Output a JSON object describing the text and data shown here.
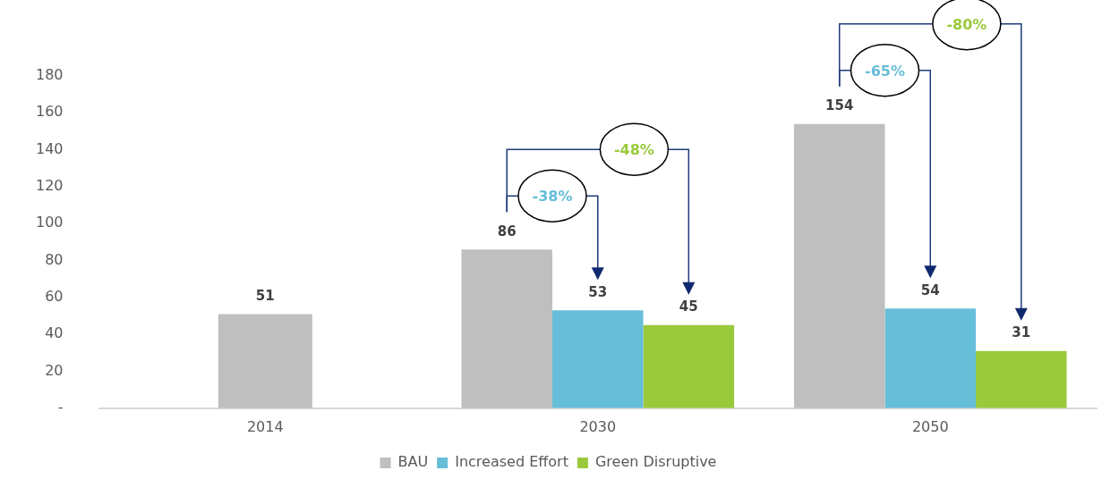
{
  "chart_data": {
    "type": "bar",
    "categories": [
      "2014",
      "2030",
      "2050"
    ],
    "series": [
      {
        "name": "BAU",
        "color": "#bfbfbf",
        "values": [
          51,
          86,
          154
        ]
      },
      {
        "name": "Increased Effort",
        "color": "#67bed9",
        "values": [
          null,
          53,
          54
        ]
      },
      {
        "name": "Green Disruptive",
        "color": "#9aca3c",
        "values": [
          null,
          45,
          31
        ]
      }
    ],
    "ylim": [
      0,
      180
    ],
    "yticks": [
      {
        "value": 0,
        "label": "-"
      },
      20,
      40,
      60,
      80,
      100,
      120,
      140,
      160,
      180
    ],
    "grid": false,
    "legend": "bottom",
    "data_labels": true,
    "annotations": [
      "-38%",
      "-48%",
      "-65%",
      "-80%"
    ]
  }
}
